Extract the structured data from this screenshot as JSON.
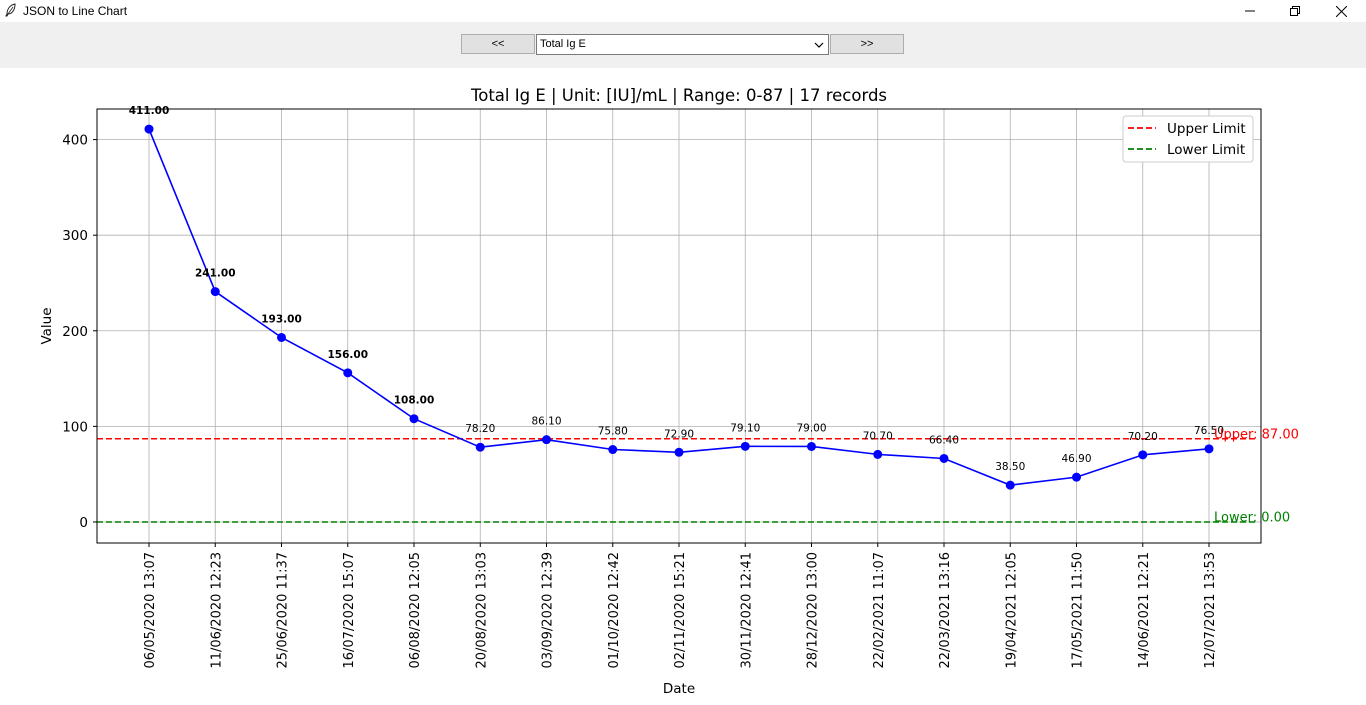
{
  "window": {
    "title": "JSON to Line Chart",
    "icon": "feather-icon",
    "controls": [
      "minimize-icon",
      "restore-icon",
      "close-icon"
    ]
  },
  "toolbar": {
    "prev_label": "<<",
    "next_label": ">>",
    "selected_test": "Total Ig E"
  },
  "chart_data": {
    "type": "line",
    "title": "Total Ig E | Unit: [IU]/mL | Range: 0-87 | 17 records",
    "xlabel": "Date",
    "ylabel": "Value",
    "ylim": [
      -22,
      432
    ],
    "yticks": [
      0,
      100,
      200,
      300,
      400
    ],
    "grid": true,
    "legend_position": "top-right",
    "categories": [
      "06/05/2020 13:07",
      "11/06/2020 12:23",
      "25/06/2020 11:37",
      "16/07/2020 15:07",
      "06/08/2020 12:05",
      "20/08/2020 13:03",
      "03/09/2020 12:39",
      "01/10/2020 12:42",
      "02/11/2020 15:21",
      "30/11/2020 12:41",
      "28/12/2020 13:00",
      "22/02/2021 11:07",
      "22/03/2021 13:16",
      "19/04/2021 12:05",
      "17/05/2021 11:50",
      "14/06/2021 12:21",
      "12/07/2021 13:53"
    ],
    "values": [
      411.0,
      241.0,
      193.0,
      156.0,
      108.0,
      78.2,
      86.1,
      75.8,
      72.9,
      79.1,
      79.0,
      70.7,
      66.4,
      38.5,
      46.9,
      70.2,
      76.5
    ],
    "value_labels": [
      "411.00",
      "241.00",
      "193.00",
      "156.00",
      "108.00",
      "78.20",
      "86.10",
      "75.80",
      "72.90",
      "79.10",
      "79.00",
      "70.70",
      "66.40",
      "38.50",
      "46.90",
      "70.20",
      "76.50"
    ],
    "series_color": "#0000ff",
    "limits": {
      "upper": {
        "value": 87,
        "legend": "Upper Limit",
        "annotation": "Upper: 87.00",
        "color": "#ff0000"
      },
      "lower": {
        "value": 0,
        "legend": "Lower Limit",
        "annotation": "Lower: 0.00",
        "color": "#008000"
      }
    }
  }
}
